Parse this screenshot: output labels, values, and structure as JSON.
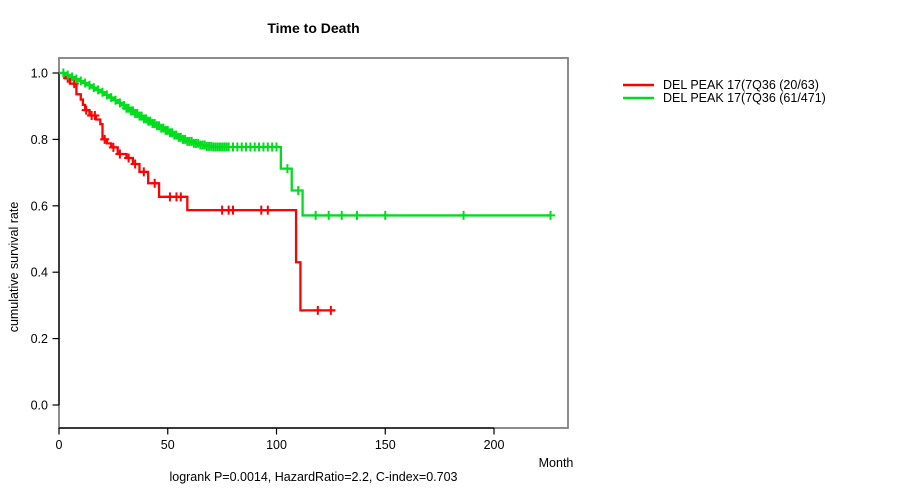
{
  "title": "Time to Death",
  "y_axis_label": "cumulative survival rate",
  "x_axis_label": "Month",
  "caption": "logrank P=0.0014, HazardRatio=2.2, C-index=0.703",
  "colors": {
    "group1": "#ff0000",
    "group2": "#00dd1c",
    "box": "#808080",
    "axis": "#000000"
  },
  "legend": [
    {
      "label": "DEL PEAK 17(7Q36 (20/63)",
      "color": "#ff0000"
    },
    {
      "label": "DEL PEAK 17(7Q36 (61/471)",
      "color": "#00dd1c"
    }
  ],
  "chart_data": {
    "type": "line",
    "subtype": "kaplan-meier-survival-step",
    "title": "Time to Death",
    "xlabel": "Month",
    "ylabel": "cumulative survival rate",
    "xlim": [
      0,
      234
    ],
    "ylim": [
      0,
      1.0
    ],
    "x_ticks": [
      0,
      50,
      100,
      150,
      200
    ],
    "y_ticks": [
      0.0,
      0.2,
      0.4,
      0.6,
      0.8,
      1.0
    ],
    "grid": false,
    "legend_position": "right-outside",
    "stats_caption": "logrank P=0.0014, HazardRatio=2.2, C-index=0.703",
    "series": [
      {
        "name": "DEL PEAK 17(7Q36 (20/63)",
        "color": "#ff0000",
        "end_month": 127,
        "steps": [
          [
            0,
            1.0
          ],
          [
            3,
            0.984
          ],
          [
            5,
            0.968
          ],
          [
            8,
            0.936
          ],
          [
            10,
            0.92
          ],
          [
            11,
            0.904
          ],
          [
            12,
            0.888
          ],
          [
            14,
            0.872
          ],
          [
            17,
            0.86
          ],
          [
            19,
            0.846
          ],
          [
            20,
            0.8
          ],
          [
            22,
            0.788
          ],
          [
            24,
            0.776
          ],
          [
            27,
            0.756
          ],
          [
            31,
            0.744
          ],
          [
            34,
            0.726
          ],
          [
            37,
            0.702
          ],
          [
            41,
            0.668
          ],
          [
            46,
            0.627
          ],
          [
            59,
            0.587
          ],
          [
            109,
            0.43
          ],
          [
            111,
            0.285
          ]
        ],
        "censor_months": [
          4,
          7,
          12.5,
          15,
          16.5,
          21,
          25,
          28,
          32,
          35,
          39,
          44,
          51,
          54,
          56,
          75,
          78,
          80,
          93,
          96,
          119,
          125
        ]
      },
      {
        "name": "DEL PEAK 17(7Q36 (61/471)",
        "color": "#00dd1c",
        "end_month": 226,
        "steps": [
          [
            0,
            1.0
          ],
          [
            3,
            0.994
          ],
          [
            5,
            0.988
          ],
          [
            7,
            0.982
          ],
          [
            9,
            0.976
          ],
          [
            11,
            0.97
          ],
          [
            13,
            0.963
          ],
          [
            15,
            0.956
          ],
          [
            17,
            0.949
          ],
          [
            19,
            0.942
          ],
          [
            21,
            0.934
          ],
          [
            23,
            0.926
          ],
          [
            25,
            0.918
          ],
          [
            27,
            0.91
          ],
          [
            29,
            0.902
          ],
          [
            31,
            0.894
          ],
          [
            33,
            0.886
          ],
          [
            35,
            0.878
          ],
          [
            37,
            0.87
          ],
          [
            39,
            0.862
          ],
          [
            41,
            0.855
          ],
          [
            43,
            0.848
          ],
          [
            45,
            0.841
          ],
          [
            47,
            0.834
          ],
          [
            49,
            0.827
          ],
          [
            51,
            0.82
          ],
          [
            53,
            0.813
          ],
          [
            55,
            0.806
          ],
          [
            57,
            0.8
          ],
          [
            59,
            0.794
          ],
          [
            62,
            0.788
          ],
          [
            65,
            0.783
          ],
          [
            68,
            0.779
          ],
          [
            71,
            0.777
          ],
          [
            102,
            0.712
          ],
          [
            107,
            0.646
          ],
          [
            112,
            0.571
          ]
        ],
        "censor_months": [
          2,
          4,
          6,
          8,
          10,
          12,
          14,
          16,
          18,
          20,
          22,
          24,
          26,
          28,
          30,
          31,
          32,
          33,
          34,
          35,
          36,
          37,
          38,
          39,
          40,
          41,
          42,
          43,
          44,
          45,
          46,
          47,
          48,
          49,
          50,
          51,
          52,
          53,
          54,
          55,
          56,
          57,
          58,
          59,
          60,
          61,
          62,
          63,
          64,
          65,
          66,
          67,
          68,
          69,
          70,
          71,
          72,
          73,
          74,
          75,
          76,
          77,
          78,
          80,
          82,
          84,
          86,
          88,
          90,
          92,
          94,
          96,
          98,
          100,
          105,
          110,
          118,
          124,
          130,
          137,
          150,
          186,
          226
        ]
      }
    ]
  }
}
